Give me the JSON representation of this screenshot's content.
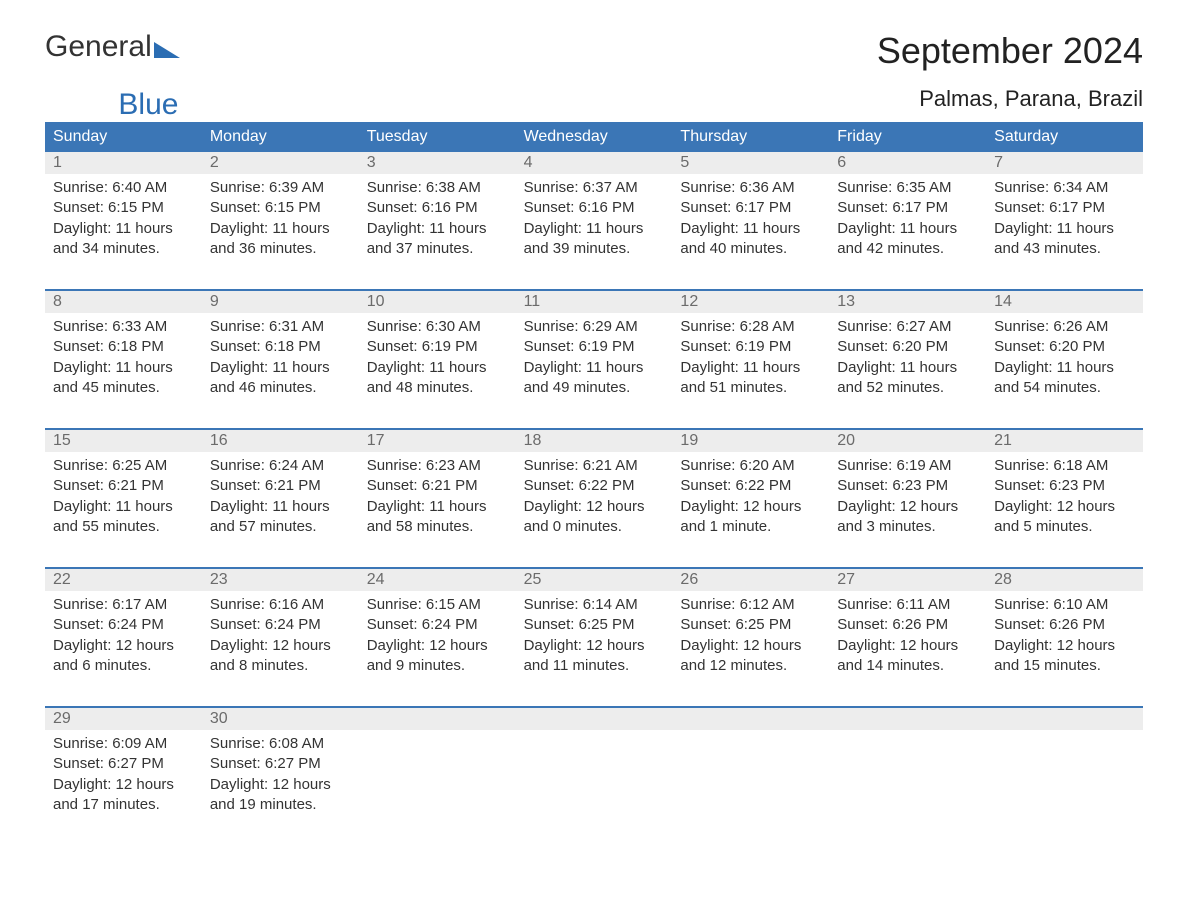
{
  "logo": {
    "part1": "General",
    "part2": "Blue"
  },
  "title": "September 2024",
  "location": "Palmas, Parana, Brazil",
  "colors": {
    "header_bg": "#3b76b6",
    "header_text": "#ffffff",
    "daynum_bg": "#ededed",
    "daynum_text": "#6b6b6b",
    "body_text": "#333333",
    "week_border": "#3b76b6",
    "logo_blue": "#2b6db3",
    "page_bg": "#ffffff"
  },
  "type": "calendar-table",
  "days_of_week": [
    "Sunday",
    "Monday",
    "Tuesday",
    "Wednesday",
    "Thursday",
    "Friday",
    "Saturday"
  ],
  "weeks": [
    [
      {
        "n": "1",
        "sunrise": "Sunrise: 6:40 AM",
        "sunset": "Sunset: 6:15 PM",
        "d1": "Daylight: 11 hours",
        "d2": "and 34 minutes."
      },
      {
        "n": "2",
        "sunrise": "Sunrise: 6:39 AM",
        "sunset": "Sunset: 6:15 PM",
        "d1": "Daylight: 11 hours",
        "d2": "and 36 minutes."
      },
      {
        "n": "3",
        "sunrise": "Sunrise: 6:38 AM",
        "sunset": "Sunset: 6:16 PM",
        "d1": "Daylight: 11 hours",
        "d2": "and 37 minutes."
      },
      {
        "n": "4",
        "sunrise": "Sunrise: 6:37 AM",
        "sunset": "Sunset: 6:16 PM",
        "d1": "Daylight: 11 hours",
        "d2": "and 39 minutes."
      },
      {
        "n": "5",
        "sunrise": "Sunrise: 6:36 AM",
        "sunset": "Sunset: 6:17 PM",
        "d1": "Daylight: 11 hours",
        "d2": "and 40 minutes."
      },
      {
        "n": "6",
        "sunrise": "Sunrise: 6:35 AM",
        "sunset": "Sunset: 6:17 PM",
        "d1": "Daylight: 11 hours",
        "d2": "and 42 minutes."
      },
      {
        "n": "7",
        "sunrise": "Sunrise: 6:34 AM",
        "sunset": "Sunset: 6:17 PM",
        "d1": "Daylight: 11 hours",
        "d2": "and 43 minutes."
      }
    ],
    [
      {
        "n": "8",
        "sunrise": "Sunrise: 6:33 AM",
        "sunset": "Sunset: 6:18 PM",
        "d1": "Daylight: 11 hours",
        "d2": "and 45 minutes."
      },
      {
        "n": "9",
        "sunrise": "Sunrise: 6:31 AM",
        "sunset": "Sunset: 6:18 PM",
        "d1": "Daylight: 11 hours",
        "d2": "and 46 minutes."
      },
      {
        "n": "10",
        "sunrise": "Sunrise: 6:30 AM",
        "sunset": "Sunset: 6:19 PM",
        "d1": "Daylight: 11 hours",
        "d2": "and 48 minutes."
      },
      {
        "n": "11",
        "sunrise": "Sunrise: 6:29 AM",
        "sunset": "Sunset: 6:19 PM",
        "d1": "Daylight: 11 hours",
        "d2": "and 49 minutes."
      },
      {
        "n": "12",
        "sunrise": "Sunrise: 6:28 AM",
        "sunset": "Sunset: 6:19 PM",
        "d1": "Daylight: 11 hours",
        "d2": "and 51 minutes."
      },
      {
        "n": "13",
        "sunrise": "Sunrise: 6:27 AM",
        "sunset": "Sunset: 6:20 PM",
        "d1": "Daylight: 11 hours",
        "d2": "and 52 minutes."
      },
      {
        "n": "14",
        "sunrise": "Sunrise: 6:26 AM",
        "sunset": "Sunset: 6:20 PM",
        "d1": "Daylight: 11 hours",
        "d2": "and 54 minutes."
      }
    ],
    [
      {
        "n": "15",
        "sunrise": "Sunrise: 6:25 AM",
        "sunset": "Sunset: 6:21 PM",
        "d1": "Daylight: 11 hours",
        "d2": "and 55 minutes."
      },
      {
        "n": "16",
        "sunrise": "Sunrise: 6:24 AM",
        "sunset": "Sunset: 6:21 PM",
        "d1": "Daylight: 11 hours",
        "d2": "and 57 minutes."
      },
      {
        "n": "17",
        "sunrise": "Sunrise: 6:23 AM",
        "sunset": "Sunset: 6:21 PM",
        "d1": "Daylight: 11 hours",
        "d2": "and 58 minutes."
      },
      {
        "n": "18",
        "sunrise": "Sunrise: 6:21 AM",
        "sunset": "Sunset: 6:22 PM",
        "d1": "Daylight: 12 hours",
        "d2": "and 0 minutes."
      },
      {
        "n": "19",
        "sunrise": "Sunrise: 6:20 AM",
        "sunset": "Sunset: 6:22 PM",
        "d1": "Daylight: 12 hours",
        "d2": "and 1 minute."
      },
      {
        "n": "20",
        "sunrise": "Sunrise: 6:19 AM",
        "sunset": "Sunset: 6:23 PM",
        "d1": "Daylight: 12 hours",
        "d2": "and 3 minutes."
      },
      {
        "n": "21",
        "sunrise": "Sunrise: 6:18 AM",
        "sunset": "Sunset: 6:23 PM",
        "d1": "Daylight: 12 hours",
        "d2": "and 5 minutes."
      }
    ],
    [
      {
        "n": "22",
        "sunrise": "Sunrise: 6:17 AM",
        "sunset": "Sunset: 6:24 PM",
        "d1": "Daylight: 12 hours",
        "d2": "and 6 minutes."
      },
      {
        "n": "23",
        "sunrise": "Sunrise: 6:16 AM",
        "sunset": "Sunset: 6:24 PM",
        "d1": "Daylight: 12 hours",
        "d2": "and 8 minutes."
      },
      {
        "n": "24",
        "sunrise": "Sunrise: 6:15 AM",
        "sunset": "Sunset: 6:24 PM",
        "d1": "Daylight: 12 hours",
        "d2": "and 9 minutes."
      },
      {
        "n": "25",
        "sunrise": "Sunrise: 6:14 AM",
        "sunset": "Sunset: 6:25 PM",
        "d1": "Daylight: 12 hours",
        "d2": "and 11 minutes."
      },
      {
        "n": "26",
        "sunrise": "Sunrise: 6:12 AM",
        "sunset": "Sunset: 6:25 PM",
        "d1": "Daylight: 12 hours",
        "d2": "and 12 minutes."
      },
      {
        "n": "27",
        "sunrise": "Sunrise: 6:11 AM",
        "sunset": "Sunset: 6:26 PM",
        "d1": "Daylight: 12 hours",
        "d2": "and 14 minutes."
      },
      {
        "n": "28",
        "sunrise": "Sunrise: 6:10 AM",
        "sunset": "Sunset: 6:26 PM",
        "d1": "Daylight: 12 hours",
        "d2": "and 15 minutes."
      }
    ],
    [
      {
        "n": "29",
        "sunrise": "Sunrise: 6:09 AM",
        "sunset": "Sunset: 6:27 PM",
        "d1": "Daylight: 12 hours",
        "d2": "and 17 minutes."
      },
      {
        "n": "30",
        "sunrise": "Sunrise: 6:08 AM",
        "sunset": "Sunset: 6:27 PM",
        "d1": "Daylight: 12 hours",
        "d2": "and 19 minutes."
      },
      null,
      null,
      null,
      null,
      null
    ]
  ]
}
